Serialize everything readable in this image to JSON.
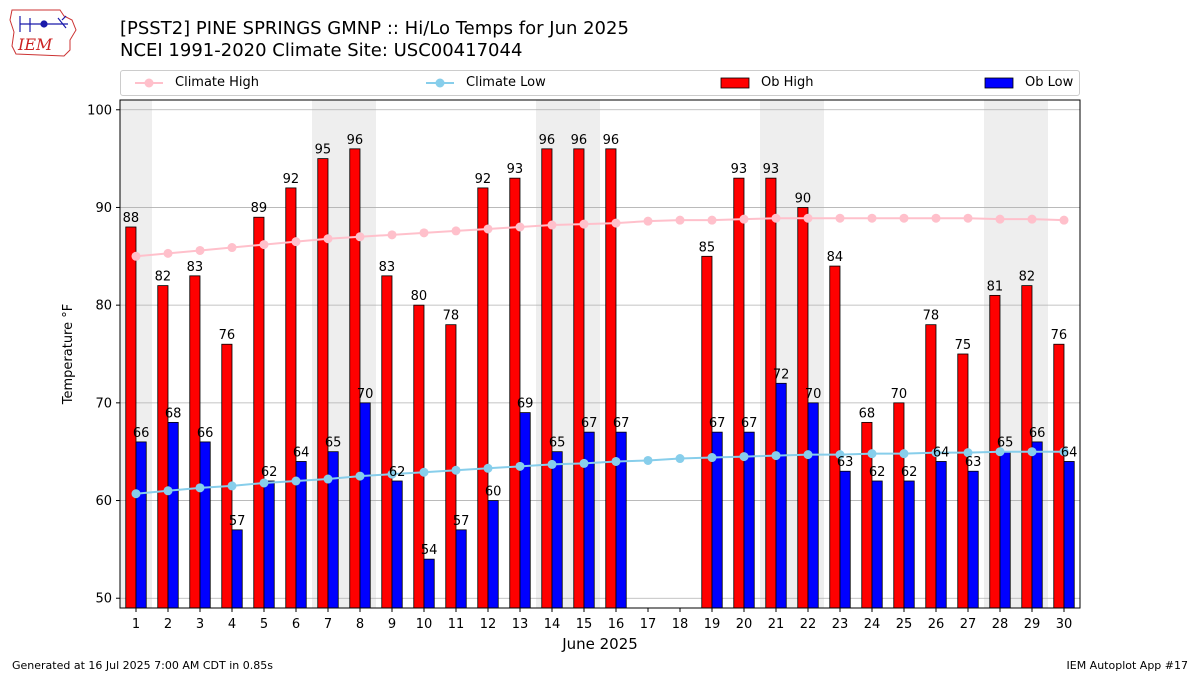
{
  "logo": {
    "text": "IEM",
    "icon": "iowa-state-outline-with-weather-station"
  },
  "header": {
    "title_line1": "[PSST2] PINE SPRINGS GMNP :: Hi/Lo Temps for Jun 2025",
    "title_line2": "NCEI 1991-2020 Climate Site: USC00417044"
  },
  "legend": {
    "climate_high": "Climate High",
    "climate_low": "Climate Low",
    "ob_high": "Ob High",
    "ob_low": "Ob Low"
  },
  "footer": {
    "generated": "Generated at 16 Jul 2025 7:00 AM CDT in 0.85s",
    "app": "IEM Autoplot App #17"
  },
  "colors": {
    "ob_high": "#ff0000",
    "ob_low": "#0000ff",
    "climate_high": "#ffc0cb",
    "climate_low": "#87ceeb",
    "weekend_band": "#eeeeee",
    "grid": "#b0b0b0"
  },
  "chart_data": {
    "type": "bar",
    "xlabel": "June 2025",
    "ylabel": "Temperature °F",
    "ylim": [
      49,
      101
    ],
    "yticks": [
      50,
      60,
      70,
      80,
      90,
      100
    ],
    "grid": "horizontal",
    "legend_position": "top",
    "categories": [
      "1",
      "2",
      "3",
      "4",
      "5",
      "6",
      "7",
      "8",
      "9",
      "10",
      "11",
      "12",
      "13",
      "14",
      "15",
      "16",
      "17",
      "18",
      "19",
      "20",
      "21",
      "22",
      "23",
      "24",
      "25",
      "26",
      "27",
      "28",
      "29",
      "30"
    ],
    "weekend_days": [
      1,
      7,
      8,
      14,
      15,
      21,
      22,
      28,
      29
    ],
    "series": [
      {
        "name": "Ob High",
        "kind": "bar",
        "values": [
          88,
          82,
          83,
          76,
          89,
          92,
          95,
          96,
          83,
          80,
          78,
          92,
          93,
          96,
          96,
          96,
          null,
          null,
          85,
          93,
          93,
          90,
          84,
          68,
          70,
          78,
          75,
          81,
          82,
          76
        ]
      },
      {
        "name": "Ob Low",
        "kind": "bar",
        "values": [
          66,
          68,
          66,
          57,
          62,
          64,
          65,
          70,
          62,
          54,
          57,
          60,
          69,
          65,
          67,
          67,
          null,
          null,
          67,
          67,
          72,
          70,
          63,
          62,
          62,
          64,
          63,
          65,
          66,
          64
        ]
      },
      {
        "name": "Climate High",
        "kind": "line",
        "values": [
          85.0,
          85.3,
          85.6,
          85.9,
          86.2,
          86.5,
          86.8,
          87.0,
          87.2,
          87.4,
          87.6,
          87.8,
          88.0,
          88.2,
          88.3,
          88.4,
          88.6,
          88.7,
          88.7,
          88.8,
          88.9,
          88.9,
          88.9,
          88.9,
          88.9,
          88.9,
          88.9,
          88.8,
          88.8,
          88.7
        ]
      },
      {
        "name": "Climate Low",
        "kind": "line",
        "values": [
          60.7,
          61.0,
          61.3,
          61.5,
          61.8,
          62.0,
          62.2,
          62.5,
          62.7,
          62.9,
          63.1,
          63.3,
          63.5,
          63.7,
          63.8,
          64.0,
          64.1,
          64.3,
          64.4,
          64.5,
          64.6,
          64.7,
          64.7,
          64.8,
          64.8,
          64.9,
          64.9,
          65.0,
          65.0,
          65.0
        ]
      }
    ]
  }
}
